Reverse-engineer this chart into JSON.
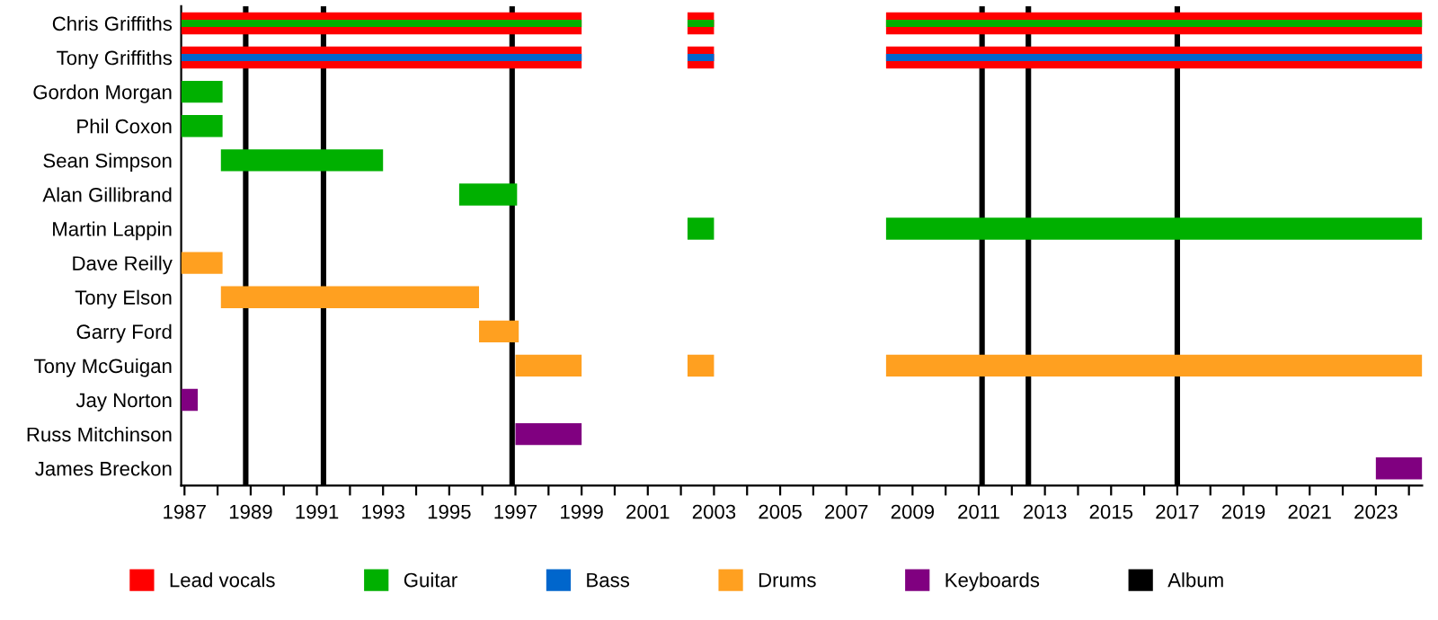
{
  "chart_data": {
    "type": "bar",
    "orientation": "horizontal",
    "categories": [
      "Chris Griffiths",
      "Tony Griffiths",
      "Gordon Morgan",
      "Phil Coxon",
      "Sean Simpson",
      "Alan Gillibrand",
      "Martin Lappin",
      "Dave Reilly",
      "Tony Elson",
      "Garry Ford",
      "Tony McGuigan",
      "Jay Norton",
      "Russ Mitchinson",
      "James Breckon"
    ],
    "series": [
      {
        "name": "Lead vocals",
        "color": "#ff0000",
        "base": [
          1986.9,
          1986.9,
          null,
          null,
          null,
          null,
          null,
          null,
          null,
          null,
          null,
          null,
          null,
          null
        ],
        "values": [
          12.1,
          12.1,
          null,
          null,
          null,
          null,
          null,
          null,
          null,
          null,
          null,
          null,
          null,
          null
        ]
      },
      {
        "color": "#ff0000",
        "base": [
          2002.2,
          2002.2,
          null,
          null,
          null,
          null,
          null,
          null,
          null,
          null,
          null,
          null,
          null,
          null
        ],
        "values": [
          0.8,
          0.8,
          null,
          null,
          null,
          null,
          null,
          null,
          null,
          null,
          null,
          null,
          null,
          null
        ]
      },
      {
        "color": "#ff0000",
        "base": [
          2008.2,
          2008.2,
          null,
          null,
          null,
          null,
          null,
          null,
          null,
          null,
          null,
          null,
          null,
          null
        ],
        "values": [
          16.2,
          16.2,
          null,
          null,
          null,
          null,
          null,
          null,
          null,
          null,
          null,
          null,
          null,
          null
        ]
      },
      {
        "name": "Guitar",
        "color": "#00b000",
        "base": [
          1986.9,
          null,
          1986.9,
          1986.9,
          1988.1,
          1995.3,
          null,
          null,
          null,
          null,
          null,
          null,
          null,
          null
        ],
        "values": [
          12.1,
          null,
          1.25,
          1.25,
          4.9,
          1.75,
          null,
          null,
          null,
          null,
          null,
          null,
          null,
          null
        ]
      },
      {
        "color": "#00b000",
        "base": [
          2002.2,
          null,
          null,
          null,
          null,
          null,
          2002.2,
          null,
          null,
          null,
          null,
          null,
          null,
          null
        ],
        "values": [
          0.8,
          null,
          null,
          null,
          null,
          null,
          0.8,
          null,
          null,
          null,
          null,
          null,
          null,
          null
        ]
      },
      {
        "color": "#00b000",
        "base": [
          2008.2,
          null,
          null,
          null,
          null,
          null,
          2008.2,
          null,
          null,
          null,
          null,
          null,
          null,
          null
        ],
        "values": [
          16.2,
          null,
          null,
          null,
          null,
          null,
          16.2,
          null,
          null,
          null,
          null,
          null,
          null,
          null
        ]
      },
      {
        "name": "Bass",
        "color": "#0066cc",
        "base": [
          null,
          1986.9,
          null,
          null,
          null,
          null,
          null,
          null,
          null,
          null,
          null,
          null,
          null,
          null
        ],
        "values": [
          null,
          12.1,
          null,
          null,
          null,
          null,
          null,
          null,
          null,
          null,
          null,
          null,
          null,
          null
        ]
      },
      {
        "color": "#0066cc",
        "base": [
          null,
          2002.2,
          null,
          null,
          null,
          null,
          null,
          null,
          null,
          null,
          null,
          null,
          null,
          null
        ],
        "values": [
          null,
          0.8,
          null,
          null,
          null,
          null,
          null,
          null,
          null,
          null,
          null,
          null,
          null,
          null
        ]
      },
      {
        "color": "#0066cc",
        "base": [
          null,
          2008.2,
          null,
          null,
          null,
          null,
          null,
          null,
          null,
          null,
          null,
          null,
          null,
          null
        ],
        "values": [
          null,
          16.2,
          null,
          null,
          null,
          null,
          null,
          null,
          null,
          null,
          null,
          null,
          null,
          null
        ]
      },
      {
        "name": "Drums",
        "color": "#ffa020",
        "base": [
          null,
          null,
          null,
          null,
          null,
          null,
          null,
          1986.9,
          1988.1,
          1995.9,
          1997.0,
          null,
          null,
          null
        ],
        "values": [
          null,
          null,
          null,
          null,
          null,
          null,
          null,
          1.25,
          7.8,
          1.2,
          2.0,
          null,
          null,
          null
        ]
      },
      {
        "color": "#ffa020",
        "base": [
          null,
          null,
          null,
          null,
          null,
          null,
          null,
          null,
          null,
          null,
          2002.2,
          null,
          null,
          null
        ],
        "values": [
          null,
          null,
          null,
          null,
          null,
          null,
          null,
          null,
          null,
          null,
          0.8,
          null,
          null,
          null
        ]
      },
      {
        "color": "#ffa020",
        "base": [
          null,
          null,
          null,
          null,
          null,
          null,
          null,
          null,
          null,
          null,
          2008.2,
          null,
          null,
          null
        ],
        "values": [
          null,
          null,
          null,
          null,
          null,
          null,
          null,
          null,
          null,
          null,
          16.2,
          null,
          null,
          null
        ]
      },
      {
        "name": "Keyboards",
        "color": "#800080",
        "base": [
          null,
          null,
          null,
          null,
          null,
          null,
          null,
          null,
          null,
          null,
          null,
          1986.9,
          1997.0,
          2023.0
        ],
        "values": [
          null,
          null,
          null,
          null,
          null,
          null,
          null,
          null,
          null,
          null,
          null,
          0.5,
          2.0,
          1.4
        ]
      }
    ],
    "ref_lines": [
      {
        "axis": "x",
        "value": 1988.85,
        "label": "Album",
        "color": "#000000"
      },
      {
        "axis": "x",
        "value": 1991.2,
        "color": "#000000"
      },
      {
        "axis": "x",
        "value": 1996.9,
        "color": "#000000"
      },
      {
        "axis": "x",
        "value": 2011.1,
        "color": "#000000"
      },
      {
        "axis": "x",
        "value": 2012.5,
        "color": "#000000"
      },
      {
        "axis": "x",
        "value": 2017.0,
        "color": "#000000"
      }
    ],
    "xlim": [
      1986.9,
      2024.4
    ],
    "xticks": [
      1987,
      {
        "value": 1988,
        "label": null
      },
      1989,
      {
        "value": 1990,
        "label": null
      },
      1991,
      {
        "value": 1992,
        "label": null
      },
      1993,
      {
        "value": 1994,
        "label": null
      },
      1995,
      {
        "value": 1996,
        "label": null
      },
      1997,
      {
        "value": 1998,
        "label": null
      },
      1999,
      {
        "value": 2000,
        "label": null
      },
      2001,
      {
        "value": 2002,
        "label": null
      },
      2003,
      {
        "value": 2004,
        "label": null
      },
      2005,
      {
        "value": 2006,
        "label": null
      },
      2007,
      {
        "value": 2008,
        "label": null
      },
      2009,
      {
        "value": 2010,
        "label": null
      },
      2011,
      {
        "value": 2012,
        "label": null
      },
      2013,
      {
        "value": 2014,
        "label": null
      },
      2015,
      {
        "value": 2016,
        "label": null
      },
      2017,
      {
        "value": 2018,
        "label": null
      },
      2019,
      {
        "value": 2020,
        "label": null
      },
      2021,
      {
        "value": 2022,
        "label": null
      },
      2023,
      {
        "value": 2024,
        "label": null
      }
    ],
    "legend": "bottom",
    "grid": false
  }
}
